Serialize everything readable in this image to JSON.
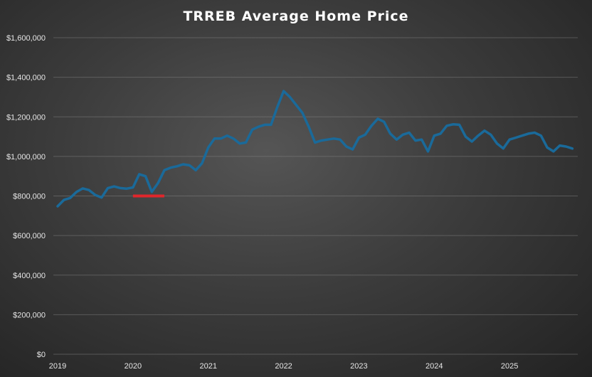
{
  "chart_data": {
    "type": "line",
    "title": "TRREB Average Home Price",
    "xlabel": "",
    "ylabel": "",
    "ylim": [
      0,
      1600000
    ],
    "y_ticks": [
      0,
      200000,
      400000,
      600000,
      800000,
      1000000,
      1200000,
      1400000,
      1600000
    ],
    "y_tick_labels": [
      "$0",
      "$200,000",
      "$400,000",
      "$600,000",
      "$800,000",
      "$1,000,000",
      "$1,200,000",
      "$1,400,000",
      "$1,600,000"
    ],
    "x_tick_labels": [
      "2019",
      "2020",
      "2021",
      "2022",
      "2023",
      "2024",
      "2025"
    ],
    "x_start": "2019-01",
    "grid": "horizontal",
    "legend": "none",
    "series": [
      {
        "color": "#1a6a9a",
        "values": [
          748000,
          780000,
          790000,
          820000,
          838000,
          830000,
          805000,
          792000,
          840000,
          848000,
          840000,
          837000,
          843000,
          910000,
          900000,
          821000,
          865000,
          930000,
          943000,
          950000,
          960000,
          955000,
          930000,
          965000,
          1045000,
          1090000,
          1090000,
          1105000,
          1090000,
          1065000,
          1070000,
          1135000,
          1150000,
          1160000,
          1160000,
          1250000,
          1330000,
          1300000,
          1260000,
          1220000,
          1150000,
          1070000,
          1080000,
          1085000,
          1090000,
          1085000,
          1050000,
          1035000,
          1095000,
          1110000,
          1155000,
          1190000,
          1175000,
          1115000,
          1085000,
          1110000,
          1120000,
          1080000,
          1085000,
          1025000,
          1105000,
          1115000,
          1155000,
          1162000,
          1160000,
          1100000,
          1075000,
          1105000,
          1130000,
          1110000,
          1065000,
          1040000,
          1085000,
          1095000,
          1105000,
          1115000,
          1120000,
          1105000,
          1045000,
          1025000,
          1055000,
          1050000,
          1040000
        ]
      }
    ],
    "annotation": {
      "type": "horizontal-line",
      "color": "#e0262b",
      "y": 800000,
      "x_from": "2020-01",
      "x_to": "2020-06"
    }
  }
}
